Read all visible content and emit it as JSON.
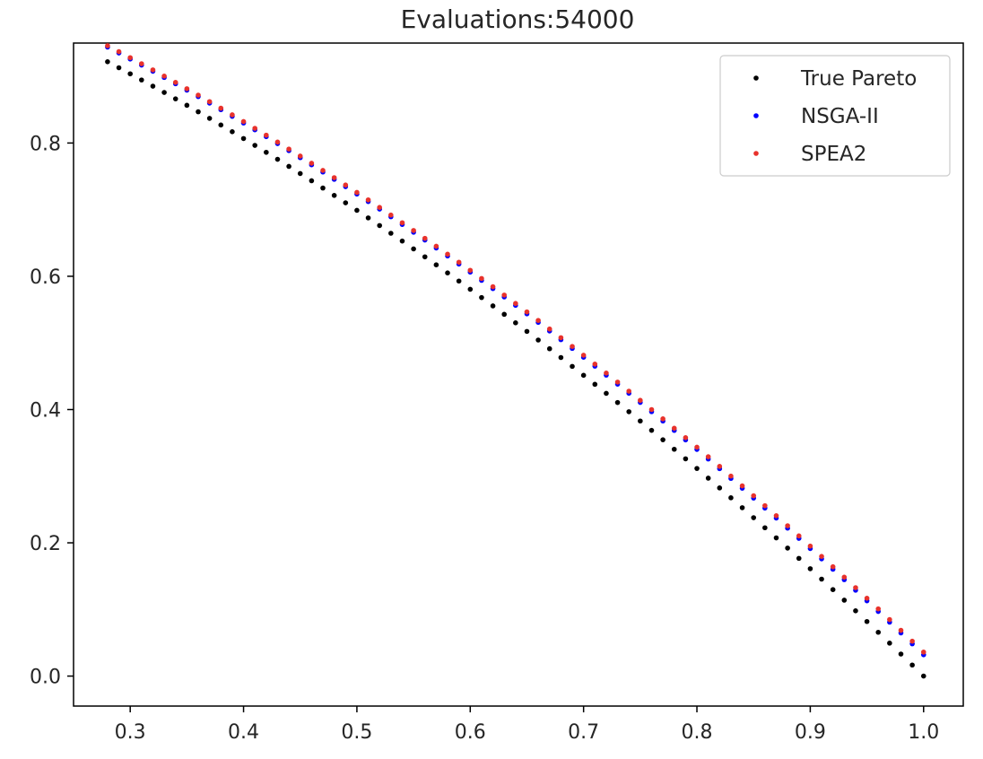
{
  "chart_data": {
    "type": "scatter",
    "title": "Evaluations:54000",
    "xlabel": "",
    "ylabel": "",
    "xlim": [
      0.25,
      1.035
    ],
    "ylim": [
      -0.045,
      0.95
    ],
    "xticks": [
      0.3,
      0.4,
      0.5,
      0.6,
      0.7,
      0.8,
      0.9,
      1.0
    ],
    "xtick_labels": [
      "0.3",
      "0.4",
      "0.5",
      "0.6",
      "0.7",
      "0.8",
      "0.9",
      "1.0"
    ],
    "yticks": [
      0.0,
      0.2,
      0.4,
      0.6,
      0.8
    ],
    "ytick_labels": [
      "0.0",
      "0.2",
      "0.4",
      "0.6",
      "0.8"
    ],
    "grid": false,
    "legend_position": "top-right",
    "x_range": [
      0.28,
      1.0
    ],
    "points_per_series": 73,
    "series": [
      {
        "name": "True Pareto",
        "color": "#000000",
        "y_start": 0.922,
        "y_end": 0.0,
        "curvature": 0.3
      },
      {
        "name": "NSGA-II",
        "color": "#0000ff",
        "y_start": 0.944,
        "y_end": 0.032,
        "curvature": 0.3
      },
      {
        "name": "SPEA2",
        "color": "#e8322c",
        "y_start": 0.946,
        "y_end": 0.036,
        "curvature": 0.3
      }
    ]
  }
}
